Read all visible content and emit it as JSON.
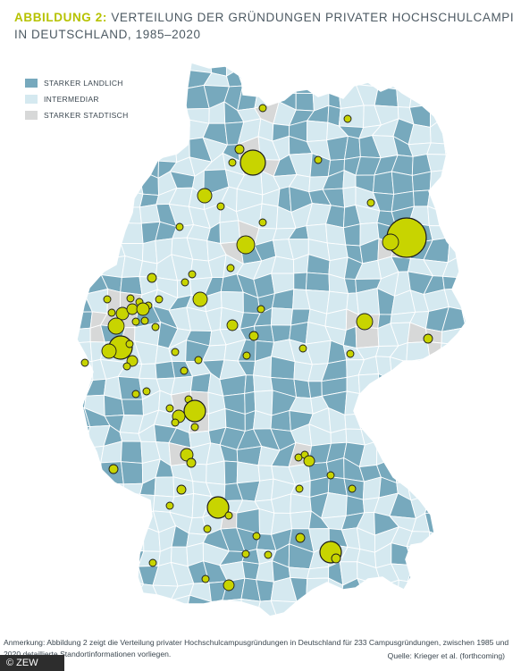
{
  "title": {
    "label": "ABBILDUNG 2:",
    "line1": "VERTEILUNG DER GRÜNDUNGEN PRIVATER HOCHSCHULCAMPI",
    "line2": "IN DEUTSCHLAND, 1985–2020"
  },
  "legend": [
    {
      "label": "STARKER LANDLICH",
      "color": "#77a9bd"
    },
    {
      "label": "INTERMEDIAR",
      "color": "#d5e9f0"
    },
    {
      "label": "STARKER STADTISCH",
      "color": "#d7d8d8"
    }
  ],
  "colors": {
    "campus_fill": "#c8d400",
    "campus_stroke": "#1c1c1c",
    "border": "#ffffff"
  },
  "note": "Anmerkung: Abbildung 2 zeigt die Verteilung privater Hochschulcampusgründungen in Deutschland für 233 Campusgründungen, zwischen 1985 und 2020 detaillierte Standortinformationen vorliegen.",
  "source": "Quelle: Krieger et al. (forthcoming)",
  "copyright": "© ZEW"
}
